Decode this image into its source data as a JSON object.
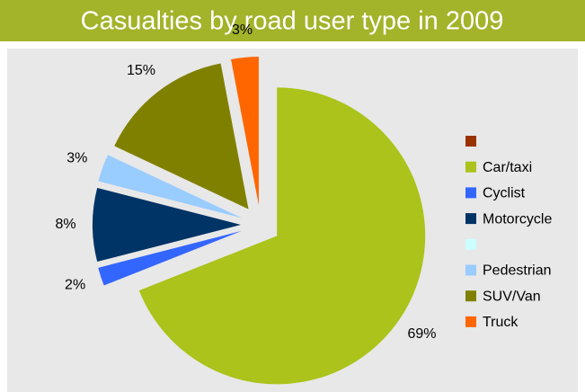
{
  "chart_data": {
    "type": "pie",
    "title": "Casualties by road user type in 2009",
    "categories": [
      null,
      "Car/taxi",
      "Cyclist",
      "Motorcycle",
      null,
      "Pedestrian",
      "SUV/Van",
      "Truck"
    ],
    "values": [
      0,
      69,
      2,
      8,
      0,
      3,
      15,
      3
    ],
    "value_labels": [
      null,
      "69%",
      "2%",
      "8%",
      null,
      "3%",
      "15%",
      "3%"
    ],
    "colors": [
      "#993300",
      "#abc31a",
      "#3366ff",
      "#003366",
      "#ccffff",
      "#99ccff",
      "#808000",
      "#ff6600"
    ],
    "legend": "right"
  }
}
